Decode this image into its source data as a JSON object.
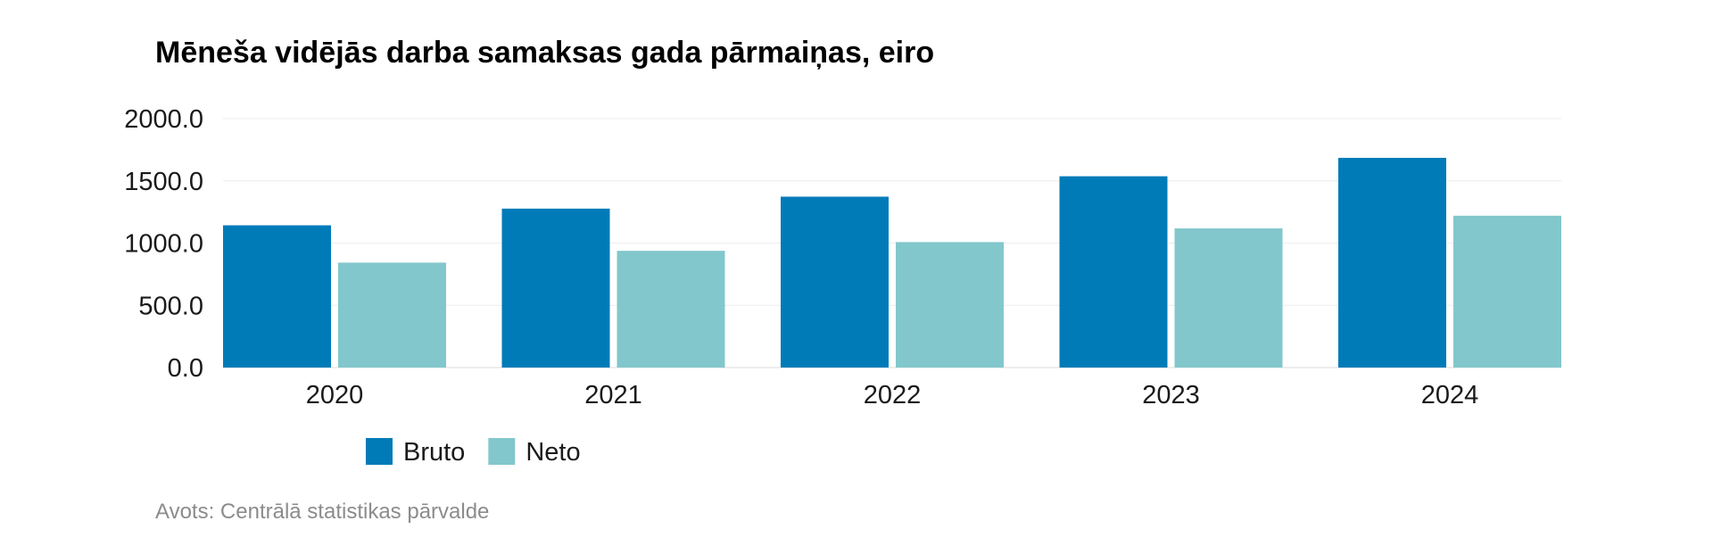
{
  "chart_data": {
    "type": "bar",
    "title": "Mēneša vidējās darba samaksas gada pārmaiņas, eiro",
    "categories": [
      "2020",
      "2021",
      "2022",
      "2023",
      "2024"
    ],
    "series": [
      {
        "name": "Bruto",
        "color": "#007bb8",
        "values": [
          1143,
          1277,
          1373,
          1537,
          1685
        ]
      },
      {
        "name": "Neto",
        "color": "#82c7cc",
        "values": [
          843,
          938,
          1008,
          1118,
          1220
        ]
      }
    ],
    "yticks": [
      "0.0",
      "500.0",
      "1000.0",
      "1500.0",
      "2000.0"
    ],
    "ylim": [
      0,
      2000
    ],
    "grid": true,
    "legend_position": "bottom-left"
  },
  "source": "Avots: Centrālā statistikas pārvalde"
}
